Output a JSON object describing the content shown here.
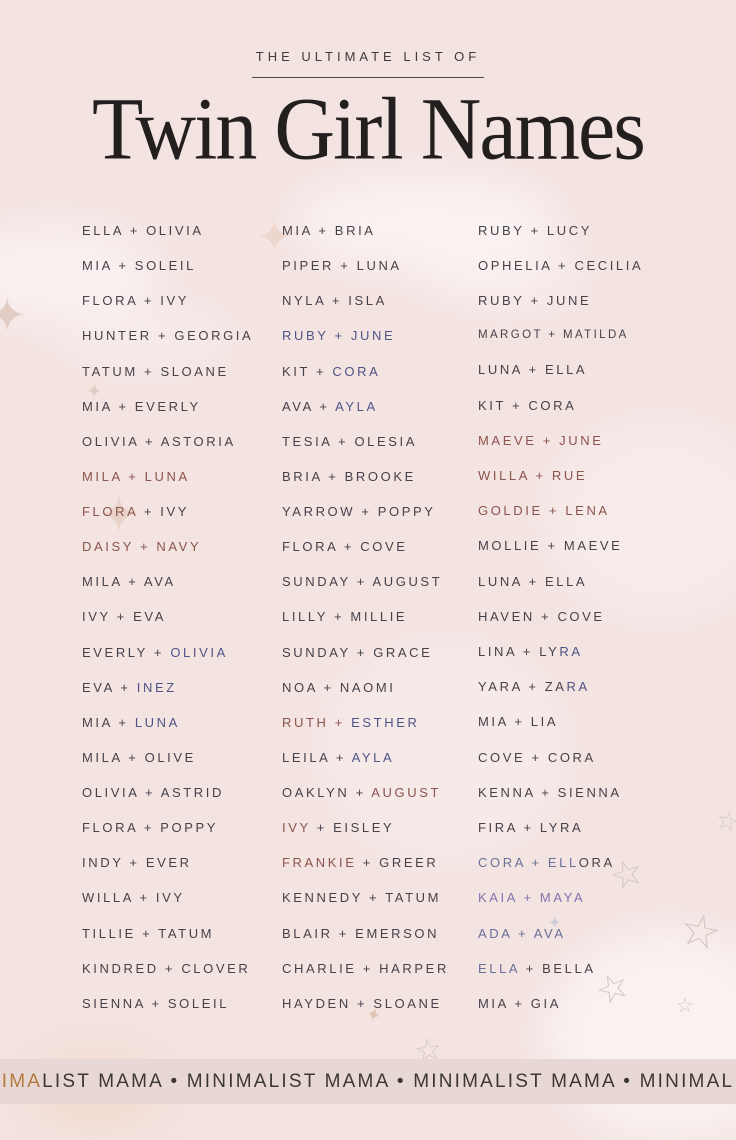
{
  "page": {
    "kicker": "THE ULTIMATE LIST OF",
    "title": "Twin Girl Names"
  },
  "colors": {
    "background": "#f3e3e1",
    "text_default": "#46424a",
    "text_mauve": "#8b544c",
    "text_blue": "#4f5487",
    "text_slate": "#68709a",
    "text_lavender": "#7e76ad",
    "text_orange": "#b3793f",
    "banner_bg": "#e7d8d6",
    "title_color": "#231f1e"
  },
  "icons": {
    "sparkle": "✦",
    "star": "☆"
  },
  "list": {
    "columns": [
      {
        "rows": [
          {
            "text": "ELLA + OLIVIA",
            "color": "default"
          },
          {
            "text": "MIA + SOLEIL",
            "color": "default"
          },
          {
            "text": "FLORA + IVY",
            "color": "default"
          },
          {
            "text": "HUNTER + GEORGIA",
            "color": "default"
          },
          {
            "text": "TATUM + SLOANE",
            "color": "default"
          },
          {
            "text": "MIA + EVERLY",
            "color": "default"
          },
          {
            "text": "OLIVIA + ASTORIA",
            "color": "default"
          },
          {
            "text": "MILA + LUNA",
            "color": "mauve"
          },
          {
            "parts": [
              {
                "text": "FLORA",
                "color": "mauve"
              },
              {
                "text": " + IVY",
                "color": "default"
              }
            ]
          },
          {
            "text": "DAISY + NAVY",
            "color": "mauve"
          },
          {
            "text": "MILA + AVA",
            "color": "default"
          },
          {
            "text": "IVY + EVA",
            "color": "default"
          },
          {
            "parts": [
              {
                "text": "EVERLY + ",
                "color": "default"
              },
              {
                "text": "OLIVIA",
                "color": "blue"
              }
            ]
          },
          {
            "parts": [
              {
                "text": "EVA + ",
                "color": "default"
              },
              {
                "text": "INEZ",
                "color": "blue"
              }
            ]
          },
          {
            "parts": [
              {
                "text": "MIA + ",
                "color": "default"
              },
              {
                "text": "LUNA",
                "color": "blue"
              }
            ]
          },
          {
            "text": "MILA + OLIVE",
            "color": "default"
          },
          {
            "text": "OLIVIA + ASTRID",
            "color": "default"
          },
          {
            "text": "FLORA + POPPY",
            "color": "default"
          },
          {
            "text": "INDY + EVER",
            "color": "default"
          },
          {
            "text": "WILLA + IVY",
            "color": "default"
          },
          {
            "text": "TILLIE + TATUM",
            "color": "default"
          },
          {
            "text": "KINDRED + CLOVER",
            "color": "default"
          },
          {
            "text": "SIENNA + SOLEIL",
            "color": "default"
          }
        ]
      },
      {
        "rows": [
          {
            "text": "MIA + BRIA",
            "color": "default"
          },
          {
            "text": "PIPER + LUNA",
            "color": "default"
          },
          {
            "text": "NYLA + ISLA",
            "color": "default"
          },
          {
            "parts": [
              {
                "text": "RUBY + ",
                "color": "blue"
              },
              {
                "text": "JUNE",
                "color": "blue"
              }
            ]
          },
          {
            "parts": [
              {
                "text": "KIT + ",
                "color": "default"
              },
              {
                "text": "CORA",
                "color": "blue"
              }
            ]
          },
          {
            "parts": [
              {
                "text": "AVA + ",
                "color": "default"
              },
              {
                "text": "AYLA",
                "color": "blue"
              }
            ]
          },
          {
            "text": "TESIA + OLESIA",
            "color": "default"
          },
          {
            "text": "BRIA + BROOKE",
            "color": "default"
          },
          {
            "text": "YARROW + POPPY",
            "color": "default"
          },
          {
            "text": "FLORA + COVE",
            "color": "default"
          },
          {
            "text": "SUNDAY + AUGUST",
            "color": "default"
          },
          {
            "text": "LILLY + MILLIE",
            "color": "default"
          },
          {
            "text": "SUNDAY + GRACE",
            "color": "default"
          },
          {
            "text": "NOA + NAOMI",
            "color": "default"
          },
          {
            "parts": [
              {
                "text": "RUTH + ",
                "color": "mauve"
              },
              {
                "text": "ESTHER",
                "color": "blue"
              }
            ]
          },
          {
            "parts": [
              {
                "text": "LEILA + ",
                "color": "default"
              },
              {
                "text": "AYLA",
                "color": "blue"
              }
            ]
          },
          {
            "parts": [
              {
                "text": "OAKLYN + ",
                "color": "default"
              },
              {
                "text": "AUGUST",
                "color": "mauve"
              }
            ]
          },
          {
            "parts": [
              {
                "text": "IVY",
                "color": "mauve"
              },
              {
                "text": " + EISLEY",
                "color": "default"
              }
            ]
          },
          {
            "parts": [
              {
                "text": "FRANKIE",
                "color": "mauve"
              },
              {
                "text": " + GREER",
                "color": "default"
              }
            ]
          },
          {
            "text": "KENNEDY + TATUM",
            "color": "default"
          },
          {
            "text": "BLAIR + EMERSON",
            "color": "default"
          },
          {
            "text": "CHARLIE + HARPER",
            "color": "default"
          },
          {
            "text": "HAYDEN + SLOANE",
            "color": "default"
          }
        ]
      },
      {
        "rows": [
          {
            "text": "RUBY + LUCY",
            "color": "default"
          },
          {
            "text": "OPHELIA + CECILIA",
            "color": "default"
          },
          {
            "text": "RUBY + JUNE",
            "color": "default"
          },
          {
            "text": "MARGOT + MATILDA",
            "color": "default",
            "small": true
          },
          {
            "text": "LUNA + ELLA",
            "color": "default"
          },
          {
            "text": "KIT + CORA",
            "color": "default"
          },
          {
            "text": "MAEVE + JUNE",
            "color": "mauve"
          },
          {
            "text": "WILLA + RUE",
            "color": "mauve"
          },
          {
            "text": "GOLDIE + LENA",
            "color": "mauve"
          },
          {
            "text": "MOLLIE + MAEVE",
            "color": "default"
          },
          {
            "text": "LUNA + ELLA",
            "color": "default"
          },
          {
            "text": "HAVEN + COVE",
            "color": "default"
          },
          {
            "parts": [
              {
                "text": "LINA + LY",
                "color": "default"
              },
              {
                "text": "RA",
                "color": "blue"
              }
            ]
          },
          {
            "parts": [
              {
                "text": "YARA + ZA",
                "color": "default"
              },
              {
                "text": "RA",
                "color": "blue"
              }
            ]
          },
          {
            "text": "MIA + LIA",
            "color": "default"
          },
          {
            "text": "COVE + CORA",
            "color": "default"
          },
          {
            "text": "KENNA + SIENNA",
            "color": "default"
          },
          {
            "text": "FIRA + LYRA",
            "color": "default"
          },
          {
            "parts": [
              {
                "text": "CORA + ELL",
                "color": "slate"
              },
              {
                "text": "ORA",
                "color": "default"
              }
            ]
          },
          {
            "text": "KAIA + MAYA",
            "color": "lavender"
          },
          {
            "text": "ADA + AVA",
            "color": "slate"
          },
          {
            "parts": [
              {
                "text": "ELLA",
                "color": "slate"
              },
              {
                "text": " + BELLA",
                "color": "default"
              }
            ]
          },
          {
            "text": "MIA + GIA",
            "color": "default"
          }
        ]
      }
    ]
  },
  "banner": {
    "parts": [
      {
        "text": "IMA",
        "color": "orange"
      },
      {
        "text": "LIST MAMA • MINIMALIST MAMA • MINIMALIST MAMA • MINIMAL",
        "color": "default"
      }
    ]
  }
}
